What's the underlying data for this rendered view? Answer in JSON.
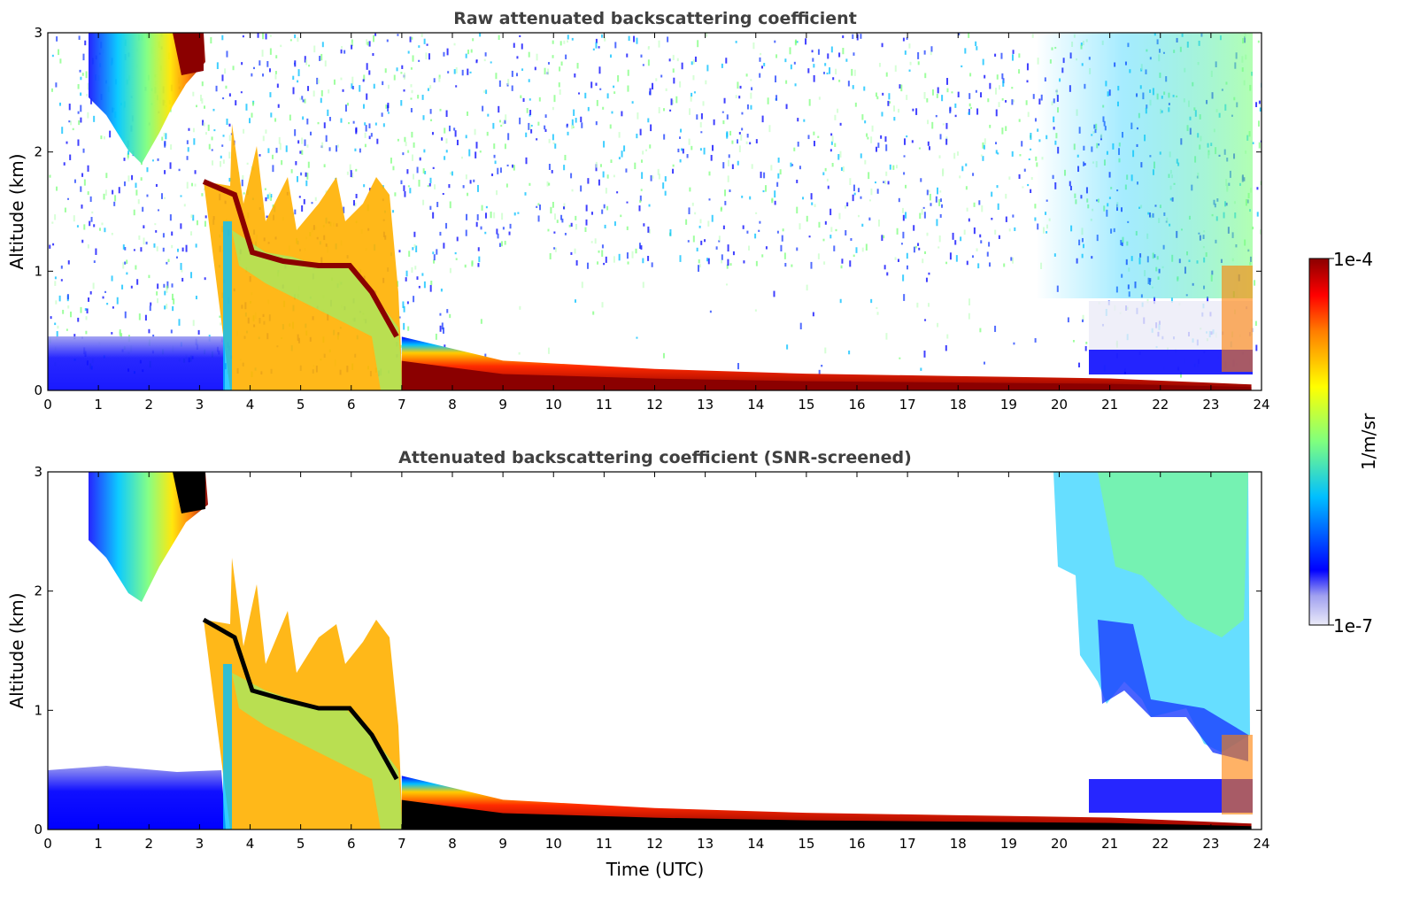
{
  "chart_data": [
    {
      "type": "heatmap",
      "title": "Raw attenuated backscattering coefficient",
      "xlabel": "",
      "ylabel": "Altitude (km)",
      "xlim": [
        0,
        24
      ],
      "ylim": [
        0,
        3
      ],
      "x_ticks": [
        "0",
        "1",
        "2",
        "3",
        "4",
        "5",
        "6",
        "7",
        "8",
        "9",
        "10",
        "11",
        "12",
        "13",
        "14",
        "15",
        "16",
        "17",
        "18",
        "19",
        "20",
        "21",
        "22",
        "23",
        "24"
      ],
      "y_ticks": [
        "0",
        "1",
        "2",
        "3"
      ],
      "features": [
        {
          "label": "dense aerosol/cloud layer",
          "t_start": 0.8,
          "t_end": 3.1,
          "alt_top": 3.0,
          "alt_bottom": 1.85
        },
        {
          "label": "elevated layer",
          "t_start": 3.1,
          "t_end": 6.8,
          "alt_top": 1.75,
          "alt_bottom": 0.9
        },
        {
          "label": "boundary layer top",
          "t": [
            7,
            9,
            12,
            15,
            18,
            21,
            23.8
          ],
          "alt": [
            0.45,
            0.25,
            0.18,
            0.14,
            0.12,
            0.1,
            0.05
          ]
        }
      ]
    },
    {
      "type": "heatmap",
      "title": "Attenuated backscattering coefficient (SNR-screened)",
      "xlabel": "Time (UTC)",
      "ylabel": "Altitude (km)",
      "xlim": [
        0,
        24
      ],
      "ylim": [
        0,
        3
      ],
      "x_ticks": [
        "0",
        "1",
        "2",
        "3",
        "4",
        "5",
        "6",
        "7",
        "8",
        "9",
        "10",
        "11",
        "12",
        "13",
        "14",
        "15",
        "16",
        "17",
        "18",
        "19",
        "20",
        "21",
        "22",
        "23",
        "24"
      ],
      "y_ticks": [
        "0",
        "1",
        "2",
        "3"
      ],
      "features": [
        {
          "label": "screened low-level signal",
          "t_start": 0,
          "t_end": 3.5,
          "alt_top": 0.5
        },
        {
          "label": "upper layer retained",
          "t_start": 20.8,
          "t_end": 23.8,
          "alt_top": 3.0,
          "alt_bottom": 0.9
        }
      ]
    }
  ],
  "colorbar": {
    "min_label": "1e-7",
    "max_label": "1e-4",
    "unit_label": "1/m/sr",
    "colormap": "jet",
    "colors": [
      "#ebebf8",
      "#0000ff",
      "#00bfff",
      "#7fff7f",
      "#ffff00",
      "#ff7f00",
      "#ff0000",
      "#8b0000"
    ]
  }
}
